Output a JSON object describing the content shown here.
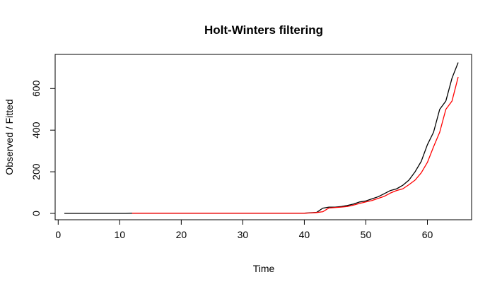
{
  "chart_data": {
    "type": "line",
    "title": "Holt-Winters filtering",
    "xlabel": "Time",
    "ylabel": "Observed / Fitted",
    "xlim": [
      1,
      65
    ],
    "ylim": [
      0,
      730
    ],
    "x_ticks": [
      0,
      10,
      20,
      30,
      40,
      50,
      60
    ],
    "y_ticks": [
      0,
      200,
      400,
      600
    ],
    "grid": false,
    "legend": "none",
    "series": [
      {
        "color": "#000000",
        "points": [
          [
            1,
            0
          ],
          [
            2,
            0
          ],
          [
            3,
            0
          ],
          [
            4,
            0
          ],
          [
            5,
            0
          ],
          [
            6,
            0
          ],
          [
            7,
            0
          ],
          [
            8,
            0
          ],
          [
            9,
            0
          ],
          [
            10,
            0
          ],
          [
            11,
            0
          ],
          [
            12,
            1
          ],
          [
            13,
            1
          ],
          [
            14,
            1
          ],
          [
            15,
            1
          ],
          [
            16,
            1
          ],
          [
            17,
            1
          ],
          [
            18,
            1
          ],
          [
            19,
            1
          ],
          [
            20,
            1
          ],
          [
            21,
            1
          ],
          [
            22,
            1
          ],
          [
            23,
            1
          ],
          [
            24,
            1
          ],
          [
            25,
            1
          ],
          [
            26,
            1
          ],
          [
            27,
            1
          ],
          [
            28,
            1
          ],
          [
            29,
            1
          ],
          [
            30,
            1
          ],
          [
            31,
            1
          ],
          [
            32,
            1
          ],
          [
            33,
            1
          ],
          [
            34,
            1
          ],
          [
            35,
            1
          ],
          [
            36,
            1
          ],
          [
            37,
            1
          ],
          [
            38,
            1
          ],
          [
            39,
            1
          ],
          [
            40,
            1
          ],
          [
            41,
            3
          ],
          [
            42,
            5
          ],
          [
            43,
            25
          ],
          [
            44,
            30
          ],
          [
            45,
            30
          ],
          [
            46,
            33
          ],
          [
            47,
            38
          ],
          [
            48,
            45
          ],
          [
            49,
            55
          ],
          [
            50,
            60
          ],
          [
            51,
            70
          ],
          [
            52,
            80
          ],
          [
            53,
            95
          ],
          [
            54,
            110
          ],
          [
            55,
            118
          ],
          [
            56,
            135
          ],
          [
            57,
            160
          ],
          [
            58,
            200
          ],
          [
            59,
            250
          ],
          [
            60,
            330
          ],
          [
            61,
            390
          ],
          [
            62,
            500
          ],
          [
            63,
            540
          ],
          [
            64,
            650
          ],
          [
            65,
            725
          ]
        ]
      },
      {
        "color": "#ff0000",
        "points": [
          [
            12,
            1
          ],
          [
            13,
            1
          ],
          [
            14,
            1
          ],
          [
            15,
            1
          ],
          [
            16,
            1
          ],
          [
            17,
            1
          ],
          [
            18,
            1
          ],
          [
            19,
            1
          ],
          [
            20,
            1
          ],
          [
            21,
            1
          ],
          [
            22,
            1
          ],
          [
            23,
            1
          ],
          [
            24,
            1
          ],
          [
            25,
            1
          ],
          [
            26,
            1
          ],
          [
            27,
            1
          ],
          [
            28,
            1
          ],
          [
            29,
            1
          ],
          [
            30,
            1
          ],
          [
            31,
            1
          ],
          [
            32,
            1
          ],
          [
            33,
            1
          ],
          [
            34,
            1
          ],
          [
            35,
            1
          ],
          [
            36,
            1
          ],
          [
            37,
            1
          ],
          [
            38,
            1
          ],
          [
            39,
            1
          ],
          [
            40,
            1
          ],
          [
            41,
            2
          ],
          [
            42,
            4
          ],
          [
            43,
            8
          ],
          [
            44,
            26
          ],
          [
            45,
            28
          ],
          [
            46,
            30
          ],
          [
            47,
            33
          ],
          [
            48,
            40
          ],
          [
            49,
            48
          ],
          [
            50,
            55
          ],
          [
            51,
            62
          ],
          [
            52,
            72
          ],
          [
            53,
            82
          ],
          [
            54,
            98
          ],
          [
            55,
            110
          ],
          [
            56,
            118
          ],
          [
            57,
            138
          ],
          [
            58,
            160
          ],
          [
            59,
            195
          ],
          [
            60,
            245
          ],
          [
            61,
            320
          ],
          [
            62,
            390
          ],
          [
            63,
            500
          ],
          [
            64,
            540
          ],
          [
            65,
            655
          ]
        ]
      }
    ]
  }
}
